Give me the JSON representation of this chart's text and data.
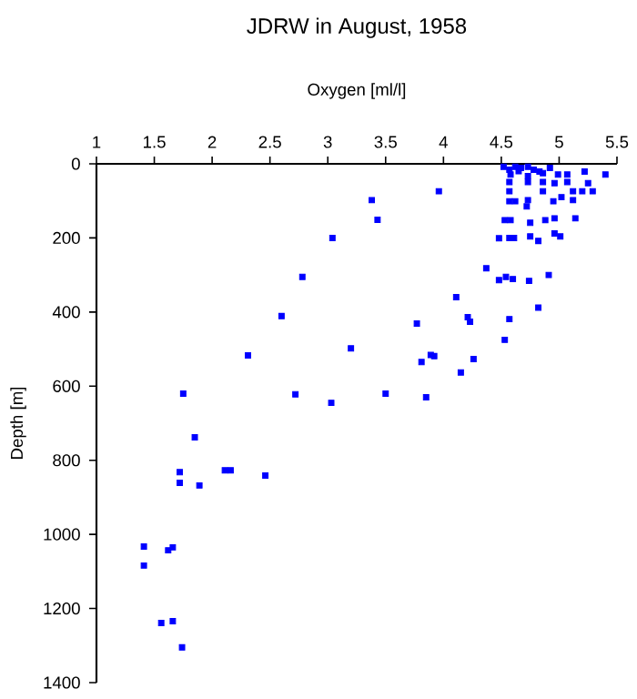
{
  "chart_data": {
    "type": "scatter",
    "title": "JDRW in August, 1958",
    "xlabel": "Oxygen [ml/l]",
    "ylabel": "Depth [m]",
    "xlim": [
      1,
      5.5
    ],
    "xticks": [
      1,
      1.5,
      2,
      2.5,
      3,
      3.5,
      4,
      4.5,
      5,
      5.5
    ],
    "ylim": [
      1400,
      0
    ],
    "yticks": [
      0,
      200,
      400,
      600,
      800,
      1000,
      1200,
      1400
    ],
    "grid": false,
    "marker": "square",
    "series": [
      {
        "color": "#0000ff",
        "x": [
          4.52,
          4.57,
          4.62,
          4.67,
          4.73,
          4.78,
          4.65,
          4.83,
          4.92,
          4.58,
          4.73,
          4.86,
          4.99,
          5.07,
          5.22,
          5.4,
          4.57,
          4.73,
          4.86,
          4.96,
          5.07,
          5.25,
          3.96,
          4.57,
          4.86,
          5.12,
          5.2,
          5.29,
          3.38,
          4.57,
          4.62,
          4.73,
          4.72,
          4.95,
          5.02,
          5.12,
          3.43,
          4.53,
          4.58,
          4.75,
          4.88,
          4.96,
          5.14,
          3.04,
          4.48,
          4.57,
          4.61,
          4.75,
          4.82,
          4.96,
          5.01,
          2.78,
          4.37,
          4.48,
          4.54,
          4.6,
          4.74,
          4.91,
          4.11,
          4.82,
          2.6,
          3.77,
          4.21,
          4.23,
          4.57,
          2.31,
          3.2,
          3.81,
          3.89,
          3.92,
          4.26,
          4.15,
          4.53,
          1.75,
          2.72,
          3.03,
          3.5,
          3.85,
          1.85,
          1.72,
          2.11,
          2.16,
          2.46,
          1.72,
          1.89,
          1.41,
          1.62,
          1.66,
          1.41,
          1.56,
          1.66,
          1.74
        ],
        "values": [
          8,
          16,
          8,
          11,
          8,
          16,
          20,
          21,
          11,
          29,
          33,
          25,
          29,
          29,
          21,
          29,
          49,
          49,
          49,
          52,
          49,
          52,
          74,
          74,
          74,
          74,
          74,
          74,
          98,
          101,
          101,
          98,
          115,
          101,
          90,
          98,
          151,
          152,
          152,
          159,
          152,
          147,
          147,
          200,
          201,
          200,
          200,
          196,
          208,
          188,
          196,
          305,
          282,
          314,
          305,
          311,
          316,
          300,
          360,
          388,
          411,
          431,
          414,
          426,
          419,
          517,
          498,
          535,
          516,
          519,
          527,
          563,
          475,
          620,
          622,
          645,
          620,
          630,
          738,
          832,
          827,
          827,
          841,
          861,
          868,
          1033,
          1043,
          1035,
          1084,
          1239,
          1234,
          1305
        ]
      }
    ]
  }
}
